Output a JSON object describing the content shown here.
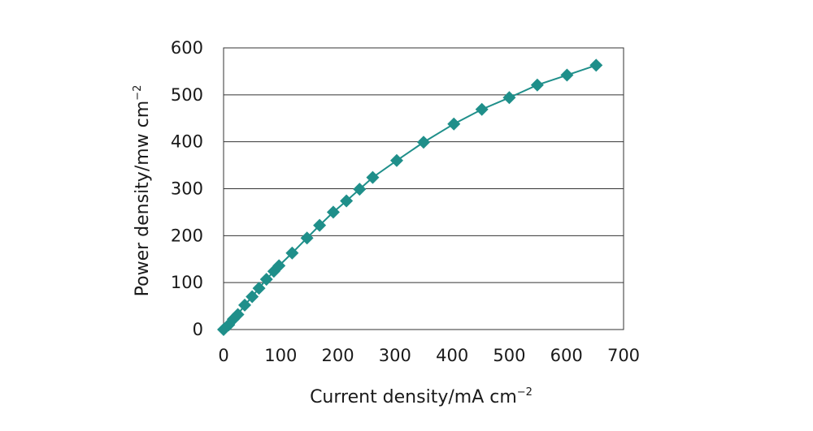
{
  "chart_data": {
    "type": "scatter",
    "xlabel": "Current density/mA cm",
    "xlabel_sup": "−2",
    "ylabel": "Power density/mw cm",
    "ylabel_sup": "−2",
    "xlim": [
      0,
      700
    ],
    "ylim": [
      0,
      600
    ],
    "xticks": [
      "0",
      "100",
      "200",
      "300",
      "400",
      "500",
      "600",
      "700"
    ],
    "yticks": [
      "0",
      "100",
      "200",
      "300",
      "400",
      "500",
      "600"
    ],
    "xtick_values": [
      0,
      100,
      200,
      300,
      400,
      500,
      600,
      700
    ],
    "ytick_values": [
      0,
      100,
      200,
      300,
      400,
      500,
      600
    ],
    "grid": "horizontal",
    "color": "#1f8f8a",
    "marker": "diamond",
    "series": [
      {
        "points": [
          [
            0,
            0
          ],
          [
            9,
            10
          ],
          [
            17,
            22
          ],
          [
            25,
            32
          ],
          [
            37,
            52
          ],
          [
            50,
            70
          ],
          [
            62,
            88
          ],
          [
            75,
            107
          ],
          [
            88,
            124
          ],
          [
            97,
            136
          ],
          [
            120,
            163
          ],
          [
            146,
            195
          ],
          [
            168,
            222
          ],
          [
            192,
            250
          ],
          [
            215,
            274
          ],
          [
            238,
            299
          ],
          [
            261,
            324
          ],
          [
            303,
            360
          ],
          [
            350,
            399
          ],
          [
            403,
            438
          ],
          [
            452,
            469
          ],
          [
            500,
            494
          ],
          [
            549,
            521
          ],
          [
            601,
            542
          ],
          [
            652,
            563
          ]
        ]
      }
    ]
  }
}
